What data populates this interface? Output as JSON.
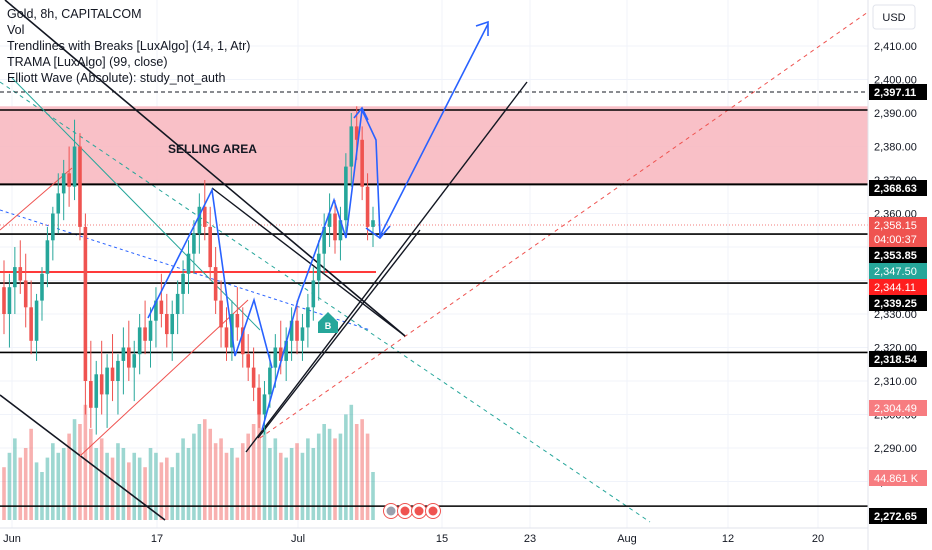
{
  "header": {
    "symbol": "Gold, 8h, CAPITALCOM",
    "indicators": [
      "Vol",
      "Trendlines with Breaks [LuxAlgo] (14, 1, Atr)",
      "TRAMA [LuxAlgo] (99, close)",
      "Elliott Wave (Absolute): study_not_auth"
    ]
  },
  "currency_label": "USD",
  "annotation": "SELLING AREA",
  "buy_marker": "B",
  "colors": {
    "up": "#26a69a",
    "down": "#ef5350",
    "zone": "#f8b5bd",
    "wave": "#2962ff",
    "trend": "#131722",
    "level": "#000000",
    "red_line": "#ff1e1e"
  },
  "chart_data": {
    "type": "candlestick",
    "x_ticks": [
      "Jun",
      "17",
      "Jul",
      "15",
      "23",
      "Aug",
      "12",
      "20"
    ],
    "y_ticks": [
      2280,
      2290,
      2300,
      2310,
      2320,
      2330,
      2340,
      2350,
      2360,
      2370,
      2380,
      2390,
      2400,
      2410
    ],
    "y_range": [
      2272.65,
      2420
    ],
    "horizontal_levels": [
      2397.11,
      2368.63,
      2353.85,
      2339.25,
      2318.54,
      2272.65
    ],
    "selling_zone": [
      2368.63,
      2392
    ],
    "price_tags": [
      {
        "label": "2,397.11",
        "kind": "level"
      },
      {
        "label": "2,368.63",
        "kind": "level"
      },
      {
        "label": "2,358.15",
        "kind": "price"
      },
      {
        "label": "04:00:37",
        "kind": "countdown"
      },
      {
        "label": "2,353.85",
        "kind": "level"
      },
      {
        "label": "2,347.50",
        "kind": "indicator_green"
      },
      {
        "label": "2,344.11",
        "kind": "indicator_red"
      },
      {
        "label": "2,339.25",
        "kind": "level"
      },
      {
        "label": "2,318.54",
        "kind": "level"
      },
      {
        "label": "2,304.49",
        "kind": "indicator_red_light"
      },
      {
        "label": "44.861 K",
        "kind": "volume"
      },
      {
        "label": "2,272.65",
        "kind": "level"
      }
    ],
    "candles": [
      [
        2338,
        2346,
        2324,
        2330
      ],
      [
        2330,
        2342,
        2320,
        2338
      ],
      [
        2338,
        2350,
        2330,
        2344
      ],
      [
        2344,
        2352,
        2336,
        2340
      ],
      [
        2340,
        2348,
        2326,
        2332
      ],
      [
        2332,
        2340,
        2318,
        2322
      ],
      [
        2322,
        2336,
        2316,
        2334
      ],
      [
        2334,
        2344,
        2328,
        2342
      ],
      [
        2342,
        2356,
        2338,
        2352
      ],
      [
        2352,
        2362,
        2346,
        2360
      ],
      [
        2360,
        2372,
        2354,
        2366
      ],
      [
        2366,
        2376,
        2358,
        2372
      ],
      [
        2372,
        2380,
        2362,
        2368
      ],
      [
        2368,
        2388,
        2364,
        2380
      ],
      [
        2380,
        2384,
        2352,
        2356
      ],
      [
        2356,
        2360,
        2300,
        2310
      ],
      [
        2310,
        2322,
        2296,
        2302
      ],
      [
        2302,
        2316,
        2294,
        2312
      ],
      [
        2312,
        2322,
        2300,
        2306
      ],
      [
        2306,
        2318,
        2296,
        2314
      ],
      [
        2314,
        2324,
        2304,
        2310
      ],
      [
        2310,
        2318,
        2300,
        2316
      ],
      [
        2316,
        2326,
        2306,
        2320
      ],
      [
        2320,
        2328,
        2310,
        2314
      ],
      [
        2314,
        2322,
        2304,
        2318
      ],
      [
        2318,
        2330,
        2312,
        2326
      ],
      [
        2326,
        2334,
        2318,
        2322
      ],
      [
        2322,
        2332,
        2314,
        2328
      ],
      [
        2328,
        2338,
        2320,
        2334
      ],
      [
        2334,
        2342,
        2326,
        2330
      ],
      [
        2330,
        2336,
        2320,
        2324
      ],
      [
        2324,
        2334,
        2316,
        2330
      ],
      [
        2330,
        2340,
        2324,
        2336
      ],
      [
        2336,
        2346,
        2330,
        2342
      ],
      [
        2342,
        2352,
        2336,
        2348
      ],
      [
        2348,
        2358,
        2342,
        2354
      ],
      [
        2354,
        2366,
        2348,
        2362
      ],
      [
        2362,
        2370,
        2352,
        2356
      ],
      [
        2356,
        2362,
        2340,
        2344
      ],
      [
        2344,
        2350,
        2330,
        2334
      ],
      [
        2334,
        2340,
        2320,
        2326
      ],
      [
        2326,
        2332,
        2316,
        2320
      ],
      [
        2320,
        2334,
        2316,
        2330
      ],
      [
        2330,
        2338,
        2322,
        2326
      ],
      [
        2326,
        2332,
        2314,
        2318
      ],
      [
        2318,
        2324,
        2310,
        2314
      ],
      [
        2314,
        2320,
        2304,
        2308
      ],
      [
        2308,
        2312,
        2296,
        2300
      ],
      [
        2300,
        2310,
        2294,
        2306
      ],
      [
        2306,
        2318,
        2302,
        2314
      ],
      [
        2314,
        2324,
        2308,
        2320
      ],
      [
        2320,
        2328,
        2312,
        2316
      ],
      [
        2316,
        2326,
        2310,
        2322
      ],
      [
        2322,
        2332,
        2316,
        2328
      ],
      [
        2328,
        2334,
        2318,
        2322
      ],
      [
        2322,
        2330,
        2316,
        2326
      ],
      [
        2326,
        2336,
        2320,
        2332
      ],
      [
        2332,
        2344,
        2328,
        2340
      ],
      [
        2340,
        2352,
        2334,
        2348
      ],
      [
        2348,
        2360,
        2342,
        2356
      ],
      [
        2356,
        2366,
        2350,
        2360
      ],
      [
        2360,
        2364,
        2348,
        2352
      ],
      [
        2352,
        2362,
        2346,
        2358
      ],
      [
        2358,
        2378,
        2354,
        2374
      ],
      [
        2374,
        2390,
        2368,
        2386
      ],
      [
        2386,
        2392,
        2376,
        2382
      ],
      [
        2382,
        2386,
        2364,
        2368
      ],
      [
        2368,
        2372,
        2352,
        2356
      ],
      [
        2356,
        2362,
        2350,
        2358
      ]
    ],
    "volumes": [
      22,
      28,
      34,
      26,
      30,
      38,
      24,
      20,
      26,
      32,
      28,
      30,
      36,
      42,
      40,
      48,
      38,
      30,
      34,
      28,
      26,
      32,
      30,
      24,
      28,
      26,
      22,
      30,
      28,
      24,
      26,
      22,
      28,
      34,
      30,
      36,
      40,
      42,
      38,
      32,
      34,
      28,
      30,
      26,
      32,
      36,
      40,
      44,
      38,
      30,
      34,
      28,
      26,
      30,
      32,
      28,
      34,
      30,
      36,
      40,
      38,
      34,
      36,
      44,
      48,
      40,
      42,
      36,
      20
    ],
    "wave_path": [
      [
        2340,
        2336
      ],
      [
        2368,
        2366
      ],
      [
        2322,
        2320
      ],
      [
        2335,
        2334
      ],
      [
        2388,
        2388
      ],
      [
        2356,
        2356
      ],
      [
        2418,
        2418
      ]
    ]
  }
}
